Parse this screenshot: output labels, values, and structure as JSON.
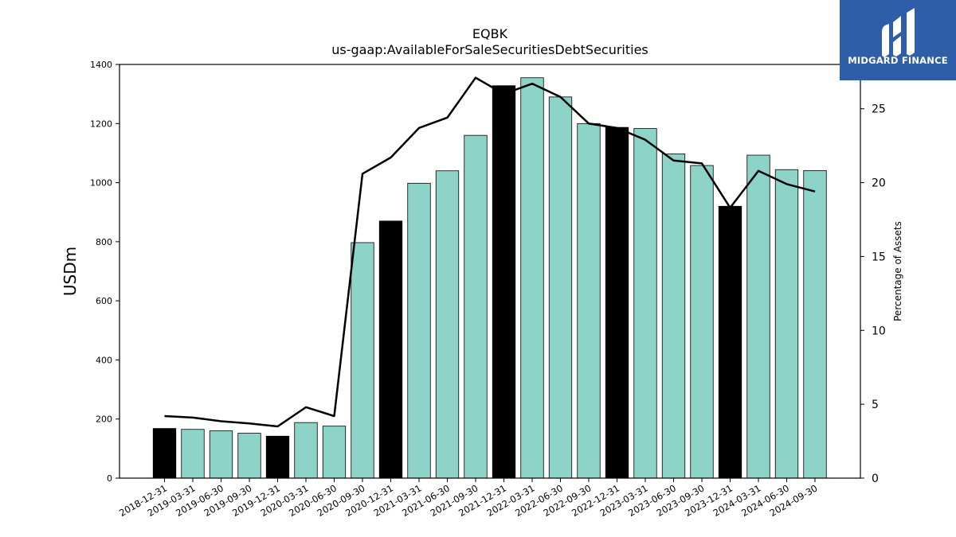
{
  "chart_data": {
    "type": "bar",
    "title": "EQBK",
    "subtitle": "us-gaap:AvailableForSaleSecuritiesDebtSecurities",
    "ylabel": "USDm",
    "y2label": "Percentage of Assets",
    "ylim": [
      0,
      1400
    ],
    "y2lim": [
      0,
      28
    ],
    "yticks": [
      0,
      200,
      400,
      600,
      800,
      1000,
      1200,
      1400
    ],
    "y2ticks": [
      0,
      5,
      10,
      15,
      20,
      25
    ],
    "categories": [
      "2018-12-31",
      "2019-03-31",
      "2019-06-30",
      "2019-09-30",
      "2019-12-31",
      "2020-03-31",
      "2020-06-30",
      "2020-09-30",
      "2020-12-31",
      "2021-03-31",
      "2021-06-30",
      "2021-09-30",
      "2021-12-31",
      "2022-03-31",
      "2022-06-30",
      "2022-09-30",
      "2022-12-31",
      "2023-03-31",
      "2023-06-30",
      "2023-09-30",
      "2023-12-31",
      "2024-03-31",
      "2024-06-30",
      "2024-09-30"
    ],
    "series": [
      {
        "type": "bar",
        "axis": "left",
        "values": [
          168,
          165,
          160,
          152,
          142,
          188,
          176,
          797,
          870,
          998,
          1040,
          1160,
          1328,
          1355,
          1290,
          1200,
          1187,
          1183,
          1097,
          1058,
          920,
          1093,
          1044,
          1041
        ],
        "colors": [
          "#000000",
          "#8dd3c7",
          "#8dd3c7",
          "#8dd3c7",
          "#000000",
          "#8dd3c7",
          "#8dd3c7",
          "#8dd3c7",
          "#000000",
          "#8dd3c7",
          "#8dd3c7",
          "#8dd3c7",
          "#000000",
          "#8dd3c7",
          "#8dd3c7",
          "#8dd3c7",
          "#000000",
          "#8dd3c7",
          "#8dd3c7",
          "#8dd3c7",
          "#000000",
          "#8dd3c7",
          "#8dd3c7",
          "#8dd3c7"
        ]
      },
      {
        "type": "line",
        "axis": "right",
        "color": "#000000",
        "values": [
          4.2,
          4.1,
          3.85,
          3.7,
          3.5,
          4.8,
          4.2,
          20.6,
          21.7,
          23.7,
          24.4,
          27.1,
          26.0,
          26.7,
          25.8,
          24.0,
          23.7,
          22.9,
          21.5,
          21.3,
          18.3,
          20.8,
          19.9,
          19.4
        ]
      }
    ],
    "grid": false,
    "legend": "none"
  },
  "logo": {
    "text": "MIDGARD FINANCE",
    "bg": "#2f5ea8",
    "icon": "midgard-logo-icon"
  }
}
